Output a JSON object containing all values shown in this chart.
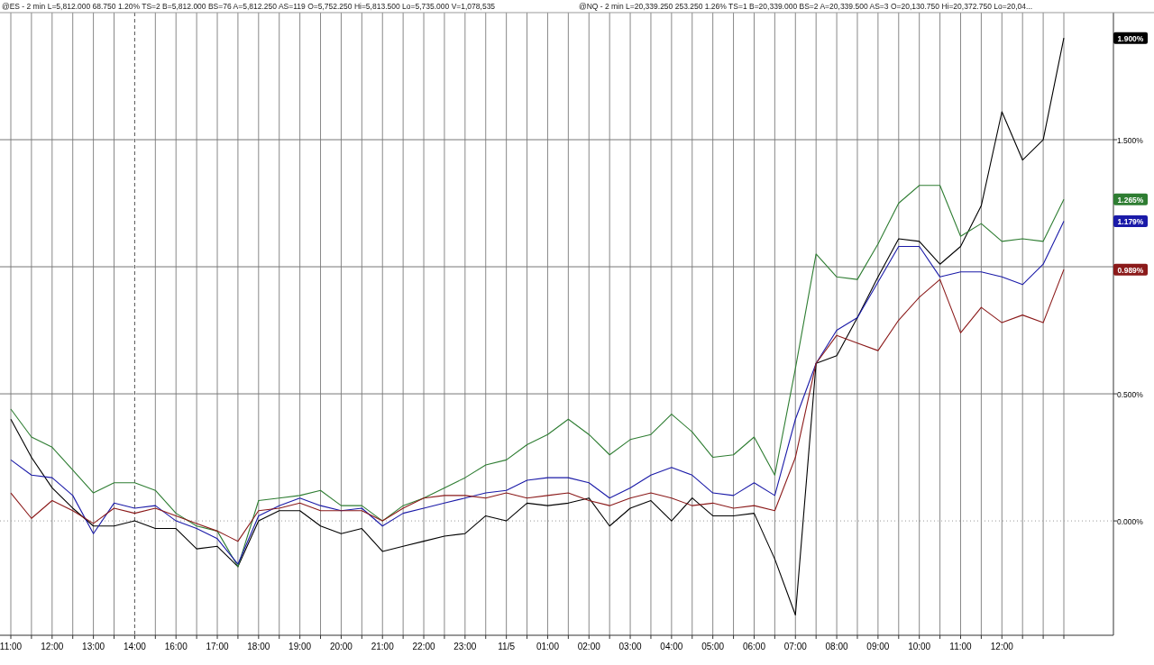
{
  "chart_data": {
    "type": "line",
    "annotations": [
      "@ES - 2 min  L=5,812.000  68.750  1.20%  TS=2  B=5,812.000  BS=76  A=5,812.250  AS=119  O=5,752.250  Hi=5,813.500  Lo=5,735.000  V=1,078,535",
      "@NQ - 2 min  L=20,339.250  253.250  1.26%  TS=1  B=20,339.000  BS=2  A=20,339.500  AS=3  O=20,130.750  Hi=20,372.750  Lo=20,04...",
      "1.900%",
      "1.265%",
      "1.179%",
      "0.989%"
    ],
    "categories": [
      "11:00",
      null,
      "12:00",
      null,
      "13:00",
      null,
      "14:00",
      null,
      "16:00",
      null,
      "17:00",
      null,
      "18:00",
      null,
      "19:00",
      null,
      "20:00",
      null,
      "21:00",
      null,
      "22:00",
      null,
      "23:00",
      null,
      "11/5",
      null,
      "01:00",
      null,
      "02:00",
      null,
      "03:00",
      null,
      "04:00",
      null,
      "05:00",
      null,
      "06:00",
      null,
      "07:00",
      null,
      "08:00",
      null,
      "09:00",
      null,
      "10:00",
      null,
      "11:00",
      null,
      "12:00",
      null,
      null,
      null
    ],
    "ylim": [
      -0.45,
      2.0
    ],
    "yticks": [
      {
        "value": 0,
        "label": "0.000%"
      },
      {
        "value": 0.5,
        "label": "0.500%"
      },
      {
        "value": 1,
        "label": null
      },
      {
        "value": 1.5,
        "label": "1.500%"
      }
    ],
    "grid": true,
    "ref_lines": [
      {
        "axis": "x",
        "value": "14:00",
        "line_style": "dashed",
        "color": "#555555"
      },
      {
        "axis": "y",
        "value": 0,
        "line_style": "dotted",
        "color": "#999999"
      }
    ],
    "series": [
      {
        "color": "#000000",
        "values": [
          0.4,
          0.25,
          0.13,
          0.05,
          -0.02,
          -0.02,
          0,
          -0.03,
          -0.03,
          -0.11,
          -0.1,
          -0.18,
          0.0,
          0.04,
          0.04,
          -0.02,
          -0.05,
          -0.03,
          -0.12,
          -0.1,
          -0.08,
          -0.06,
          -0.05,
          0.02,
          0,
          0.07,
          0.06,
          0.07,
          0.09,
          -0.02,
          0.05,
          0.08,
          0,
          0.09,
          0.02,
          0.02,
          0.03,
          -0.15,
          -0.37,
          0.62,
          0.65,
          0.8,
          0.96,
          1.11,
          1.1,
          1.01,
          1.08,
          1.24,
          1.61,
          1.42,
          1.5,
          1.9
        ]
      },
      {
        "color": "#2e7d32",
        "values": [
          0.44,
          0.33,
          0.29,
          0.2,
          0.11,
          0.15,
          0.15,
          0.12,
          0.03,
          -0.02,
          -0.04,
          -0.18,
          0.08,
          0.09,
          0.1,
          0.12,
          0.06,
          0.06,
          0,
          0.06,
          0.09,
          0.13,
          0.17,
          0.22,
          0.24,
          0.3,
          0.34,
          0.4,
          0.34,
          0.26,
          0.32,
          0.34,
          0.42,
          0.35,
          0.25,
          0.26,
          0.33,
          0.18,
          0.6,
          1.05,
          0.96,
          0.95,
          1.09,
          1.25,
          1.32,
          1.32,
          1.12,
          1.17,
          1.1,
          1.11,
          1.1,
          1.265
        ]
      },
      {
        "color": "#1a1aa8",
        "values": [
          0.24,
          0.18,
          0.17,
          0.1,
          -0.05,
          0.07,
          0.05,
          0.06,
          0,
          -0.03,
          -0.07,
          -0.17,
          0.02,
          0.06,
          0.09,
          0.06,
          0.04,
          0.05,
          -0.02,
          0.03,
          0.05,
          0.07,
          0.09,
          0.11,
          0.12,
          0.16,
          0.17,
          0.17,
          0.15,
          0.09,
          0.13,
          0.18,
          0.21,
          0.18,
          0.11,
          0.1,
          0.15,
          0.1,
          0.4,
          0.62,
          0.75,
          0.8,
          0.94,
          1.08,
          1.08,
          0.96,
          0.98,
          0.98,
          0.96,
          0.93,
          1.01,
          1.179
        ]
      },
      {
        "color": "#8b1a1a",
        "values": [
          0.11,
          0.01,
          0.08,
          0.04,
          -0.01,
          0.05,
          0.03,
          0.05,
          0.02,
          -0.01,
          -0.04,
          -0.08,
          0.04,
          0.05,
          0.07,
          0.04,
          0.04,
          0.04,
          0,
          0.05,
          0.09,
          0.1,
          0.1,
          0.09,
          0.11,
          0.09,
          0.1,
          0.11,
          0.08,
          0.06,
          0.09,
          0.11,
          0.09,
          0.06,
          0.07,
          0.05,
          0.06,
          0.04,
          0.25,
          0.62,
          0.73,
          0.7,
          0.67,
          0.79,
          0.88,
          0.95,
          0.74,
          0.84,
          0.78,
          0.81,
          0.78,
          0.989
        ]
      }
    ]
  }
}
